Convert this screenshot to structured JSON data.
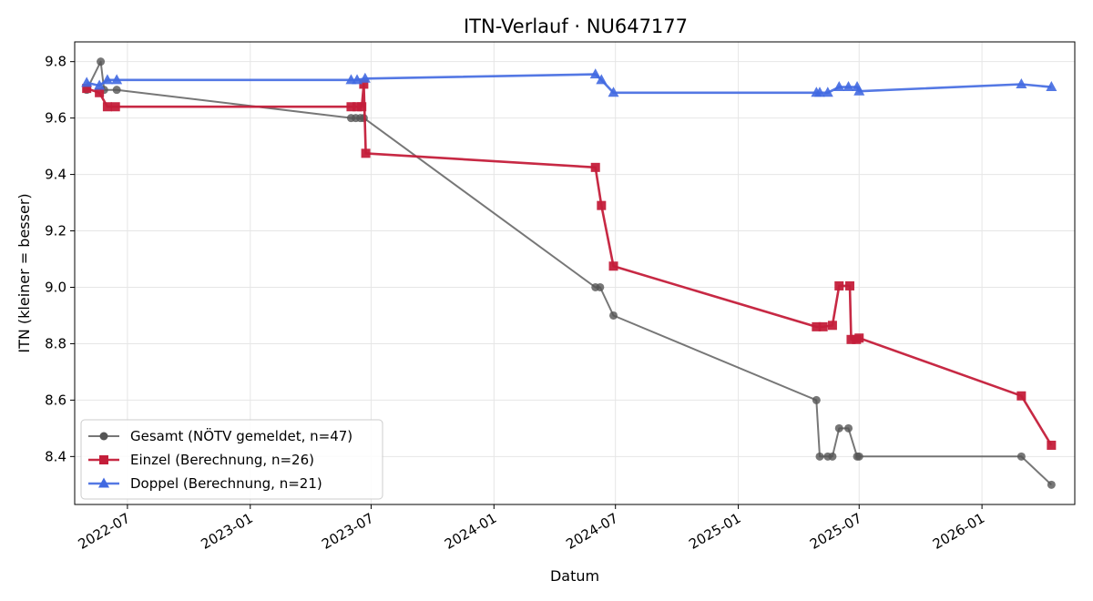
{
  "chart_data": {
    "type": "line",
    "title": "ITN-Verlauf · NU647177",
    "xlabel": "Datum",
    "ylabel": "ITN  (kleiner = besser)",
    "x_type": "date",
    "xlim": [
      "2022-04-13",
      "2026-05-20"
    ],
    "ylim": [
      8.23,
      9.87
    ],
    "x_ticks": [
      "2022-07-01",
      "2023-01-01",
      "2023-07-01",
      "2024-01-01",
      "2024-07-01",
      "2025-01-01",
      "2025-07-01",
      "2026-01-01"
    ],
    "x_tick_labels": [
      "2022-07",
      "2023-01",
      "2023-07",
      "2024-01",
      "2024-07",
      "2025-01",
      "2025-07",
      "2026-01"
    ],
    "y_ticks": [
      8.4,
      8.6,
      8.8,
      9.0,
      9.2,
      9.4,
      9.6,
      9.8
    ],
    "y_tick_labels": [
      "8.4",
      "8.6",
      "8.8",
      "9.0",
      "9.2",
      "9.4",
      "9.6",
      "9.8"
    ],
    "grid": true,
    "legend_position": "lower-left",
    "series": [
      {
        "name": "Gesamt (NÖTV gemeldet, n=47)",
        "color": "#555555",
        "marker": "circle",
        "x": [
          "2022-05-01",
          "2022-05-22",
          "2022-05-27",
          "2022-06-15",
          "2023-06-01",
          "2023-06-08",
          "2023-06-15",
          "2023-06-20",
          "2024-06-01",
          "2024-06-08",
          "2024-06-28",
          "2025-04-28",
          "2025-05-03",
          "2025-05-15",
          "2025-05-22",
          "2025-06-01",
          "2025-06-15",
          "2025-06-28",
          "2025-07-01",
          "2026-03-01",
          "2026-04-15"
        ],
        "y": [
          9.7,
          9.8,
          9.7,
          9.7,
          9.6,
          9.6,
          9.6,
          9.6,
          9.0,
          9.0,
          8.9,
          8.6,
          8.4,
          8.4,
          8.4,
          8.5,
          8.5,
          8.4,
          8.4,
          8.4,
          8.3
        ]
      },
      {
        "name": "Einzel (Berechnung, n=26)",
        "color": "#c41e3a",
        "marker": "square",
        "x": [
          "2022-05-01",
          "2022-05-20",
          "2022-06-01",
          "2022-06-13",
          "2023-06-01",
          "2023-06-10",
          "2023-06-17",
          "2023-06-20",
          "2023-06-23",
          "2024-06-01",
          "2024-06-10",
          "2024-06-28",
          "2025-04-28",
          "2025-05-08",
          "2025-05-22",
          "2025-06-01",
          "2025-06-17",
          "2025-06-19",
          "2025-06-27",
          "2025-07-01",
          "2026-03-01",
          "2026-04-15"
        ],
        "y": [
          9.705,
          9.69,
          9.64,
          9.64,
          9.64,
          9.64,
          9.64,
          9.72,
          9.475,
          9.425,
          9.29,
          9.075,
          8.86,
          8.86,
          8.865,
          9.005,
          9.005,
          8.815,
          8.815,
          8.82,
          8.615,
          8.44
        ]
      },
      {
        "name": "Doppel (Berechnung, n=21)",
        "color": "#4169e1",
        "marker": "triangle",
        "x": [
          "2022-05-01",
          "2022-05-20",
          "2022-06-01",
          "2022-06-15",
          "2023-06-01",
          "2023-06-10",
          "2023-06-22",
          "2024-06-01",
          "2024-06-10",
          "2024-06-28",
          "2025-04-28",
          "2025-05-03",
          "2025-05-15",
          "2025-06-01",
          "2025-06-15",
          "2025-06-28",
          "2025-07-01",
          "2026-03-01",
          "2026-04-15"
        ],
        "y": [
          9.725,
          9.715,
          9.735,
          9.735,
          9.735,
          9.735,
          9.74,
          9.755,
          9.735,
          9.69,
          9.69,
          9.69,
          9.69,
          9.71,
          9.71,
          9.71,
          9.695,
          9.72,
          9.71
        ]
      }
    ]
  }
}
